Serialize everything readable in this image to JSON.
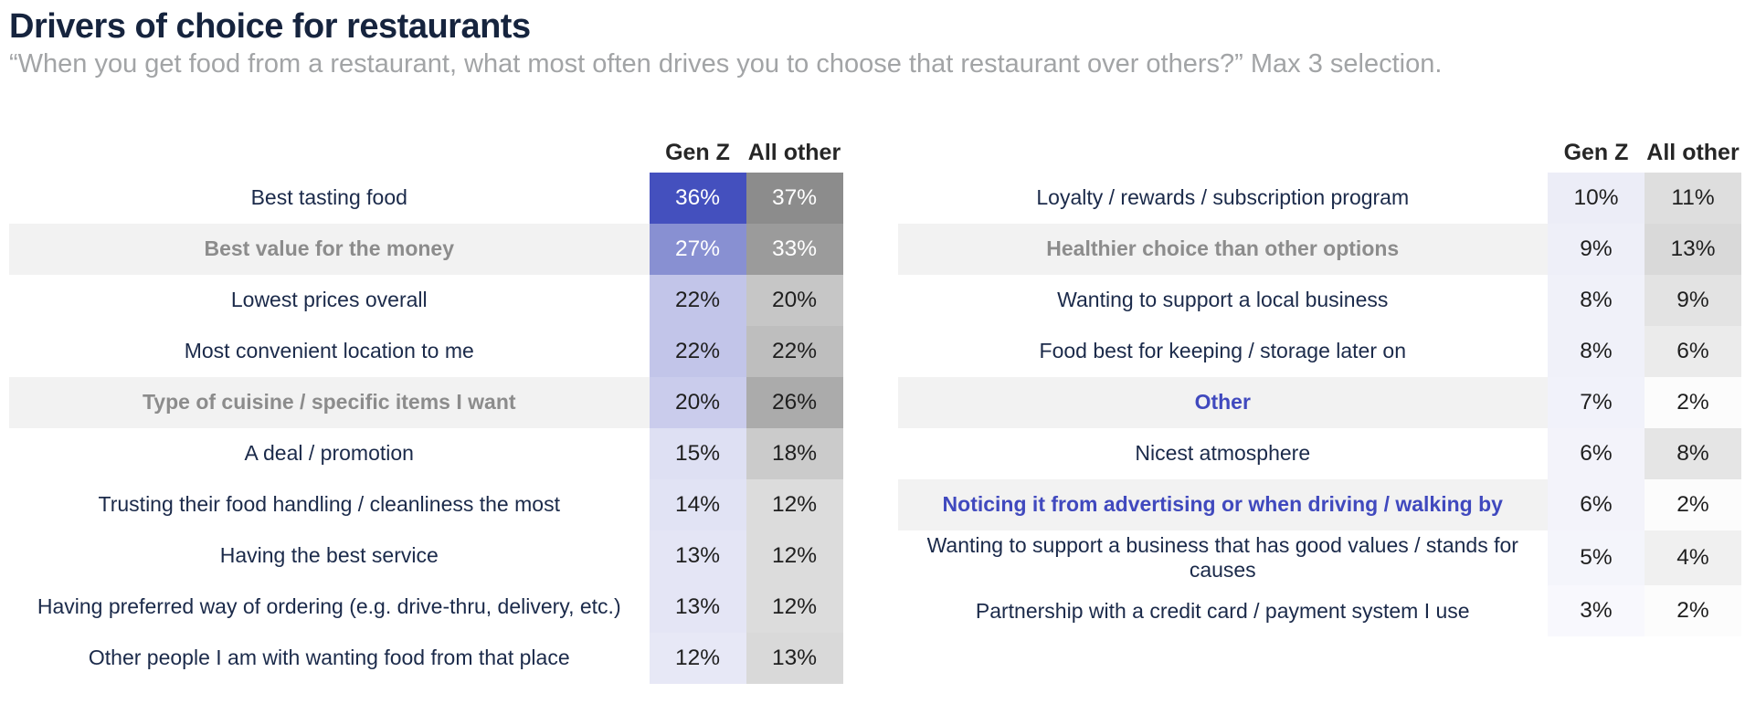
{
  "page": {
    "title": "Drivers of choice for restaurants",
    "subtitle": "“When you get food from a restaurant, what most often drives you to choose that restaurant over others?”  Max 3 selection."
  },
  "columns": {
    "genz": "Gen Z",
    "other": "All other"
  },
  "colors": {
    "title": "#16243E",
    "subtitle": "#A2A4A6",
    "label": "#1B2A4A",
    "highlight_band": "#F2F2F2",
    "emphasis_gray": "#8C8C8C",
    "emphasis_blue": "#4049BE",
    "genz_scale_max": "#4450BE",
    "other_scale_max": "#8C8C8C"
  },
  "chart_data": {
    "type": "heatmap",
    "title": "Drivers of choice for restaurants",
    "subtitle": "“When you get food from a restaurant, what most often drives you to choose that restaurant over others?”  Max 3 selection.",
    "unit": "%",
    "columns": [
      "Gen Z",
      "All other"
    ],
    "categories": [
      "Best tasting food",
      "Best value for the money",
      "Lowest prices overall",
      "Most convenient location to me",
      "Type of cuisine / specific items I want",
      "A deal / promotion",
      "Trusting their food handling / cleanliness the most",
      "Having the best service",
      "Having preferred way of ordering (e.g. drive-thru, delivery, etc.)",
      "Other people I am with wanting food from that place",
      "Loyalty / rewards / subscription program",
      "Healthier choice than other options",
      "Wanting to support a local business",
      "Food best for keeping / storage later on",
      "Other",
      "Nicest atmosphere",
      "Noticing it from advertising or when driving / walking by",
      "Wanting to support a business that has good values / stands for causes",
      "Partnership with a credit card / payment system I use"
    ],
    "series": [
      {
        "name": "Gen Z",
        "values": [
          36,
          27,
          22,
          22,
          20,
          15,
          14,
          13,
          13,
          12,
          10,
          9,
          8,
          8,
          7,
          6,
          6,
          5,
          3
        ]
      },
      {
        "name": "All other",
        "values": [
          37,
          33,
          20,
          22,
          26,
          18,
          12,
          12,
          12,
          13,
          11,
          13,
          9,
          6,
          2,
          8,
          2,
          4,
          2
        ]
      }
    ],
    "legend_position": "none",
    "grid": false
  },
  "tables": [
    {
      "rows": [
        {
          "label": "Best tasting food",
          "style": "normal",
          "genz": "36%",
          "genz_bg": "#4450BE",
          "genz_fg": "#FFFFFF",
          "other": "37%",
          "other_bg": "#8C8C8C",
          "other_fg": "#FFFFFF"
        },
        {
          "label": "Best value for the money",
          "style": "emphasis-gray",
          "genz": "27%",
          "genz_bg": "#8890D2",
          "genz_fg": "#FFFFFF",
          "other": "33%",
          "other_bg": "#9B9B9B",
          "other_fg": "#FFFFFF"
        },
        {
          "label": "Lowest prices overall",
          "style": "normal",
          "genz": "22%",
          "genz_bg": "#C2C5E9",
          "genz_fg": "#1F1F1F",
          "other": "20%",
          "other_bg": "#C6C6C6",
          "other_fg": "#1F1F1F"
        },
        {
          "label": "Most convenient location to me",
          "style": "normal",
          "genz": "22%",
          "genz_bg": "#C2C5E9",
          "genz_fg": "#1F1F1F",
          "other": "22%",
          "other_bg": "#BEBEBE",
          "other_fg": "#1F1F1F"
        },
        {
          "label": "Type of cuisine / specific items I want",
          "style": "emphasis-gray",
          "genz": "20%",
          "genz_bg": "#CACCEC",
          "genz_fg": "#1F1F1F",
          "other": "26%",
          "other_bg": "#ABABAB",
          "other_fg": "#1F1F1F"
        },
        {
          "label": "A deal / promotion",
          "style": "normal",
          "genz": "15%",
          "genz_bg": "#DEE0F3",
          "genz_fg": "#1F1F1F",
          "other": "18%",
          "other_bg": "#CBCBCB",
          "other_fg": "#1F1F1F"
        },
        {
          "label": "Trusting their food handling / cleanliness the most",
          "style": "normal",
          "genz": "14%",
          "genz_bg": "#E1E3F4",
          "genz_fg": "#1F1F1F",
          "other": "12%",
          "other_bg": "#DCDCDC",
          "other_fg": "#1F1F1F"
        },
        {
          "label": "Having the best service",
          "style": "normal",
          "genz": "13%",
          "genz_bg": "#E4E5F5",
          "genz_fg": "#1F1F1F",
          "other": "12%",
          "other_bg": "#DCDCDC",
          "other_fg": "#1F1F1F"
        },
        {
          "label": "Having preferred way of ordering (e.g. drive-thru, delivery, etc.)",
          "style": "normal",
          "genz": "13%",
          "genz_bg": "#E4E5F5",
          "genz_fg": "#1F1F1F",
          "other": "12%",
          "other_bg": "#DCDCDC",
          "other_fg": "#1F1F1F"
        },
        {
          "label": "Other people I am with wanting food from that place",
          "style": "normal",
          "genz": "12%",
          "genz_bg": "#E7E8F6",
          "genz_fg": "#1F1F1F",
          "other": "13%",
          "other_bg": "#D9D9D9",
          "other_fg": "#1F1F1F"
        }
      ]
    },
    {
      "rows": [
        {
          "label": "Loyalty / rewards / subscription program",
          "style": "normal",
          "genz": "10%",
          "genz_bg": "#ECEDF7",
          "genz_fg": "#1F1F1F",
          "other": "11%",
          "other_bg": "#DEDEDE",
          "other_fg": "#1F1F1F"
        },
        {
          "label": "Healthier choice than other options",
          "style": "emphasis-gray",
          "genz": "9%",
          "genz_bg": "#EEEFF8",
          "genz_fg": "#1F1F1F",
          "other": "13%",
          "other_bg": "#D9D9D9",
          "other_fg": "#1F1F1F"
        },
        {
          "label": "Wanting to support a local business",
          "style": "normal",
          "genz": "8%",
          "genz_bg": "#F0F1F9",
          "genz_fg": "#1F1F1F",
          "other": "9%",
          "other_bg": "#E3E3E3",
          "other_fg": "#1F1F1F"
        },
        {
          "label": "Food best for keeping / storage later on",
          "style": "normal",
          "genz": "8%",
          "genz_bg": "#F0F1F9",
          "genz_fg": "#1F1F1F",
          "other": "6%",
          "other_bg": "#EBEBEB",
          "other_fg": "#1F1F1F"
        },
        {
          "label": "Other",
          "style": "emphasis-blue",
          "genz": "7%",
          "genz_bg": "#F1F2FA",
          "genz_fg": "#1F1F1F",
          "other": "2%",
          "other_bg": "#FCFCFC",
          "other_fg": "#1F1F1F"
        },
        {
          "label": "Nicest atmosphere",
          "style": "normal",
          "genz": "6%",
          "genz_bg": "#F3F3FA",
          "genz_fg": "#1F1F1F",
          "other": "8%",
          "other_bg": "#E5E5E5",
          "other_fg": "#1F1F1F"
        },
        {
          "label": "Noticing it from advertising or when driving / walking by",
          "style": "emphasis-blue",
          "genz": "6%",
          "genz_bg": "#F3F3FA",
          "genz_fg": "#1F1F1F",
          "other": "2%",
          "other_bg": "#FCFCFC",
          "other_fg": "#1F1F1F"
        },
        {
          "label": "Wanting to support a business that has good values / stands for causes",
          "style": "normal",
          "genz": "5%",
          "genz_bg": "#F4F5FB",
          "genz_fg": "#1F1F1F",
          "other": "4%",
          "other_bg": "#F0F0F0",
          "other_fg": "#1F1F1F"
        },
        {
          "label": "Partnership with a credit card / payment system I use",
          "style": "normal",
          "genz": "3%",
          "genz_bg": "#F8F8FD",
          "genz_fg": "#1F1F1F",
          "other": "2%",
          "other_bg": "#FCFCFC",
          "other_fg": "#1F1F1F"
        }
      ]
    }
  ]
}
